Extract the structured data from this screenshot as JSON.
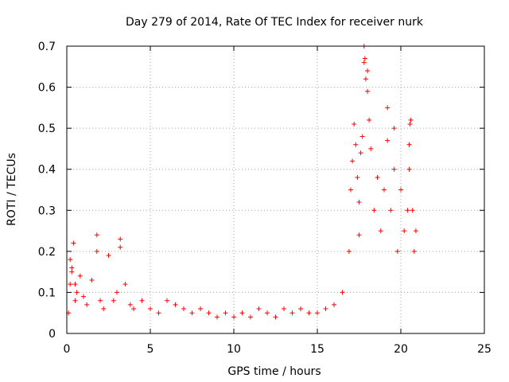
{
  "chart_data": {
    "type": "scatter",
    "title": "Day 279 of 2014, Rate Of TEC Index for receiver nurk",
    "xlabel": "GPS time / hours",
    "ylabel": "ROTI / TECUs",
    "xlim": [
      0,
      25
    ],
    "ylim": [
      0,
      0.7
    ],
    "xticks": [
      "0",
      "5",
      "10",
      "15",
      "20",
      "25"
    ],
    "yticks": [
      "0",
      "0.1",
      "0.2",
      "0.3",
      "0.4",
      "0.5",
      "0.6",
      "0.7"
    ],
    "grid": true,
    "marker": "plus",
    "color": "#ff0000",
    "series": [
      {
        "x": [
          0.1,
          0.2,
          0.3,
          0.4,
          0.5,
          0.6,
          0.8,
          1.0,
          1.2,
          1.5,
          1.8,
          2.0,
          2.2,
          2.5,
          2.8,
          3.0,
          3.2,
          3.5,
          3.8,
          4.0,
          4.5,
          5.0,
          5.5,
          6.0,
          6.5,
          7.0,
          7.5,
          8.0,
          8.5,
          9.0,
          9.5,
          10.0,
          10.5,
          11.0,
          11.5,
          12.0,
          12.5,
          13.0,
          13.5,
          14.0,
          14.5,
          15.0,
          15.5,
          16.0,
          16.5,
          16.9,
          17.0,
          17.1,
          17.2,
          17.3,
          17.4,
          17.5,
          17.6,
          17.7,
          17.8,
          17.9,
          18.0,
          18.1,
          18.2,
          18.4,
          18.6,
          18.8,
          19.0,
          19.2,
          19.4,
          19.6,
          19.8,
          20.0,
          20.2,
          20.4,
          20.5,
          20.6,
          20.7,
          20.8,
          20.9,
          0.2,
          0.5,
          1.8,
          3.2,
          17.8,
          18.0,
          20.5,
          17.85,
          19.2,
          19.6,
          20.55,
          0.3,
          17.5
        ],
        "y": [
          0.05,
          0.12,
          0.15,
          0.22,
          0.08,
          0.1,
          0.14,
          0.09,
          0.07,
          0.13,
          0.24,
          0.08,
          0.06,
          0.19,
          0.08,
          0.1,
          0.23,
          0.12,
          0.07,
          0.06,
          0.08,
          0.06,
          0.05,
          0.08,
          0.07,
          0.06,
          0.05,
          0.06,
          0.05,
          0.04,
          0.05,
          0.04,
          0.05,
          0.04,
          0.06,
          0.05,
          0.04,
          0.06,
          0.05,
          0.06,
          0.05,
          0.05,
          0.06,
          0.07,
          0.1,
          0.2,
          0.35,
          0.42,
          0.51,
          0.46,
          0.38,
          0.32,
          0.44,
          0.48,
          0.7,
          0.62,
          0.59,
          0.52,
          0.45,
          0.3,
          0.38,
          0.25,
          0.35,
          0.47,
          0.3,
          0.4,
          0.2,
          0.35,
          0.25,
          0.3,
          0.4,
          0.52,
          0.3,
          0.2,
          0.25,
          0.18,
          0.12,
          0.2,
          0.21,
          0.66,
          0.64,
          0.46,
          0.67,
          0.55,
          0.5,
          0.51,
          0.16,
          0.24
        ]
      }
    ]
  }
}
